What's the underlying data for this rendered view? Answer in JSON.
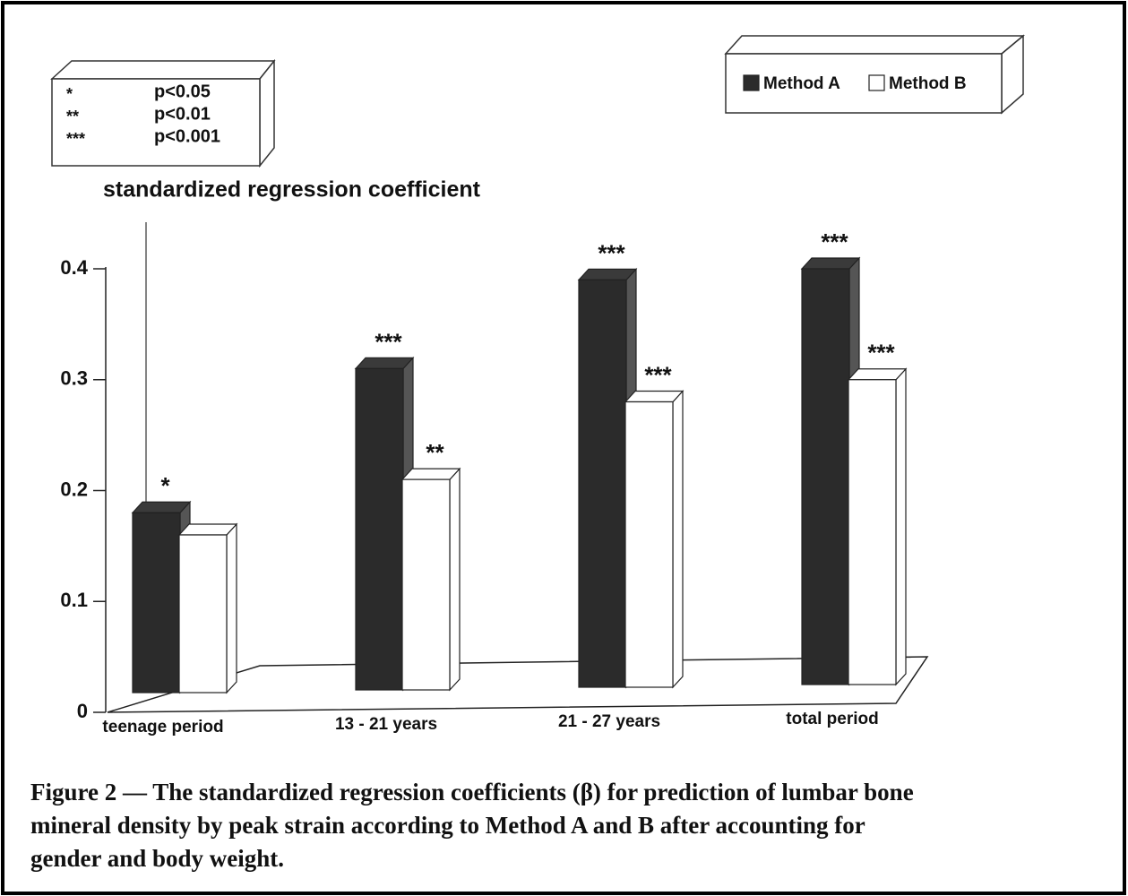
{
  "chart_data": {
    "type": "bar",
    "y_axis_label": "standardized regression coefficient",
    "categories": [
      "teenage period",
      "13 - 21 years",
      "21 - 27 years",
      "total period"
    ],
    "series": [
      {
        "name": "Method A",
        "color": "#2b2b2b",
        "values": [
          0.18,
          0.31,
          0.39,
          0.4
        ],
        "significance": [
          "*",
          "***",
          "***",
          "***"
        ]
      },
      {
        "name": "Method B",
        "color": "#ffffff",
        "values": [
          0.16,
          0.21,
          0.28,
          0.3
        ],
        "significance": [
          null,
          "**",
          "***",
          "***"
        ]
      }
    ],
    "ylim": [
      0,
      0.4
    ],
    "yticks": [
      0,
      0.1,
      0.2,
      0.3,
      0.4
    ],
    "significance_key": [
      {
        "symbol": "*",
        "text": "p<0.05"
      },
      {
        "symbol": "**",
        "text": "p<0.01"
      },
      {
        "symbol": "***",
        "text": "p<0.001"
      }
    ],
    "caption": [
      "Figure 2 — The standardized regression coefficients (β) for prediction of lumbar bone",
      "mineral density by peak strain according to Method A and B after accounting for",
      "gender and body weight."
    ]
  }
}
